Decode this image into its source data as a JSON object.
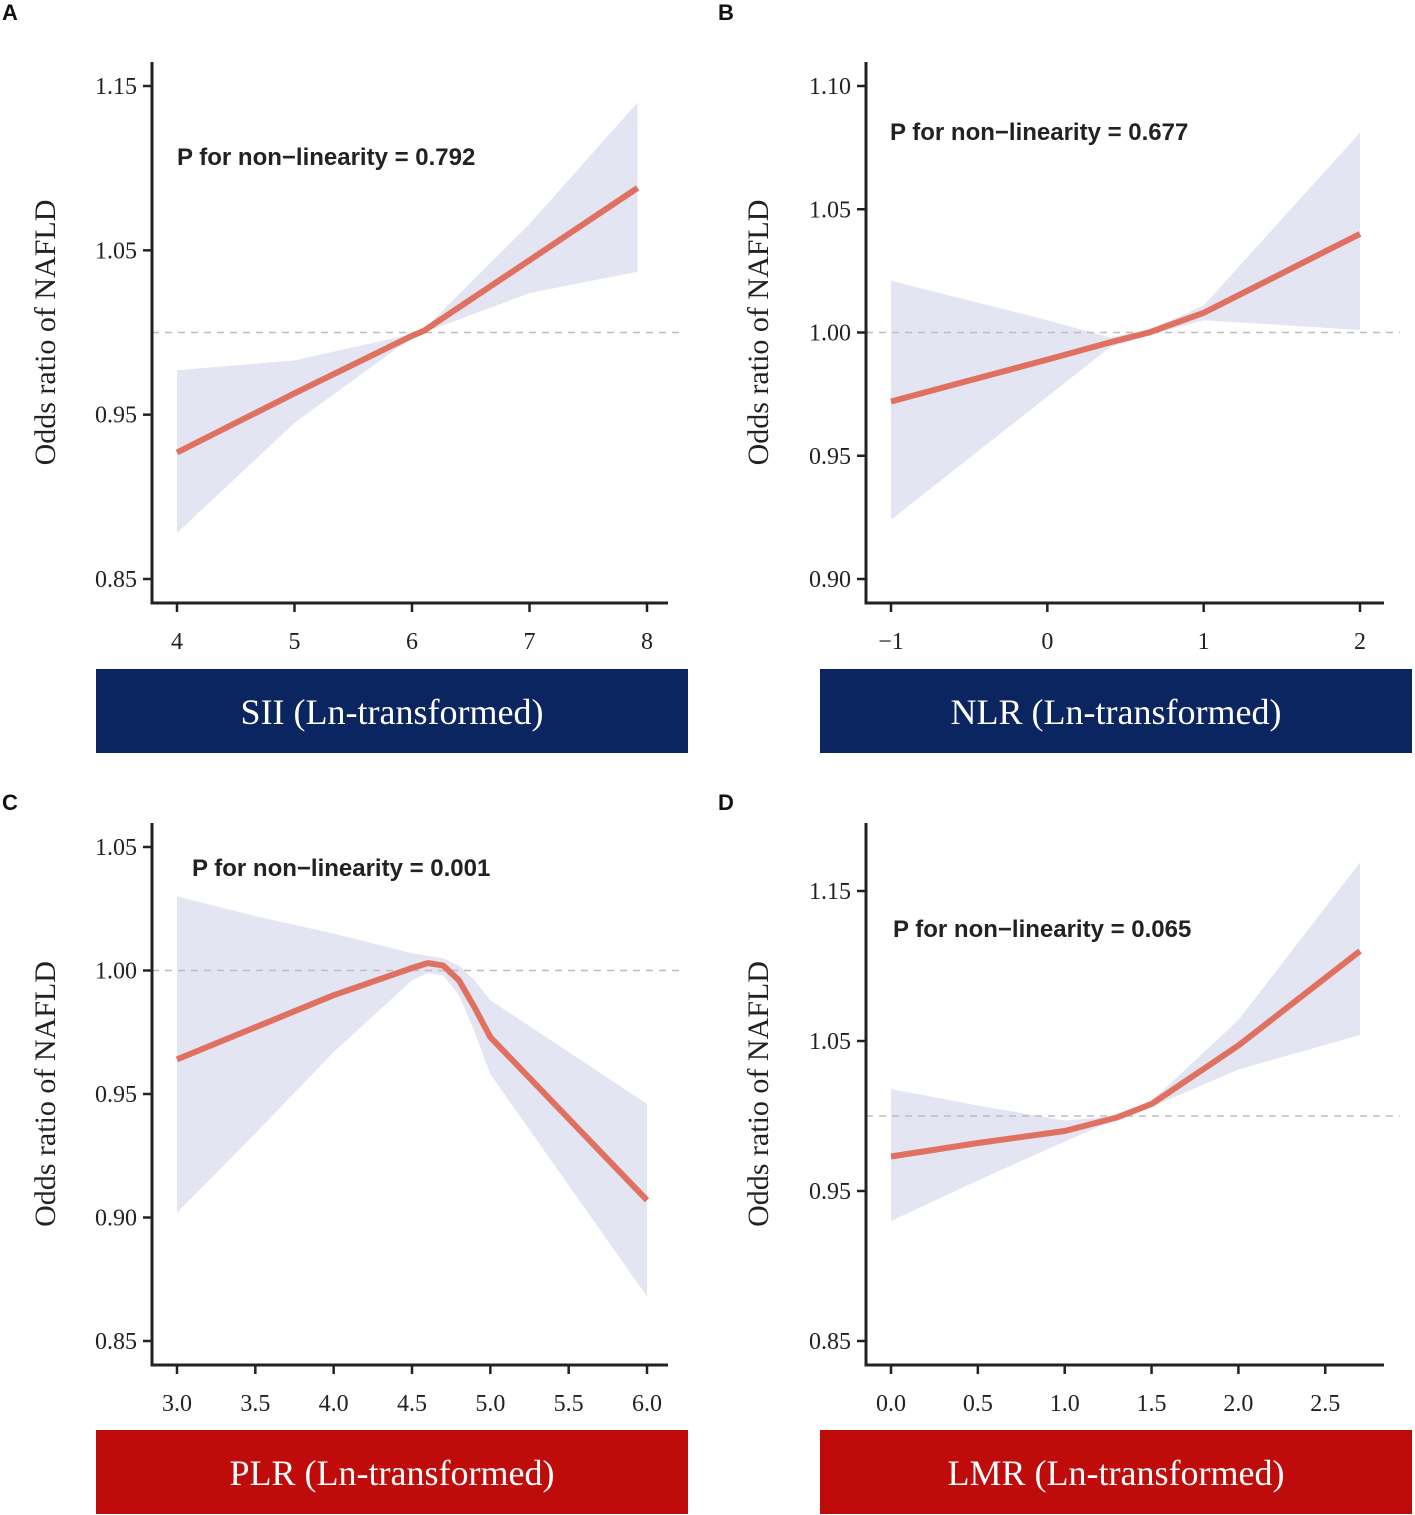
{
  "chart_data": [
    {
      "type": "line",
      "panel": "A",
      "annotation": "P for non−linearity = 0.792",
      "xlabel": "SII (Ln-transformed)",
      "ylabel": "Odds ratio of NAFLD",
      "xlim": [
        4,
        8
      ],
      "ylim": [
        0.85,
        1.15
      ],
      "xticks": [
        4,
        5,
        6,
        7,
        8
      ],
      "xtick_labels": [
        "4",
        "5",
        "6",
        "7",
        "8"
      ],
      "yticks": [
        0.85,
        0.95,
        1.05,
        1.15
      ],
      "ytick_labels": [
        "0.85",
        "0.95",
        "1.05",
        "1.15"
      ],
      "reference_line": 1.0,
      "banner_color": "#0b2561",
      "line_color": "#e07060",
      "band_color": "#e4e5f3",
      "series": [
        {
          "name": "OR",
          "x": [
            4.0,
            5.0,
            6.0,
            6.1,
            7.0,
            7.92
          ],
          "y": [
            0.927,
            0.963,
            0.998,
            1.001,
            1.044,
            1.088
          ],
          "lower": [
            0.878,
            0.945,
            0.997,
            1.0,
            1.024,
            1.037
          ],
          "upper": [
            0.977,
            0.983,
            0.999,
            1.002,
            1.066,
            1.14
          ]
        }
      ]
    },
    {
      "type": "line",
      "panel": "B",
      "annotation": "P for non−linearity = 0.677",
      "xlabel": "NLR (Ln-transformed)",
      "ylabel": "Odds ratio of NAFLD",
      "xlim": [
        -1,
        2
      ],
      "ylim": [
        0.9,
        1.1
      ],
      "xticks": [
        -1,
        0,
        1,
        2
      ],
      "xtick_labels": [
        "−1",
        "0",
        "1",
        "2"
      ],
      "yticks": [
        0.9,
        0.95,
        1.0,
        1.05,
        1.1
      ],
      "ytick_labels": [
        "0.90",
        "0.95",
        "1.00",
        "1.05",
        "1.10"
      ],
      "reference_line": 1.0,
      "banner_color": "#0b2561",
      "line_color": "#e07060",
      "band_color": "#e4e5f3",
      "series": [
        {
          "name": "OR",
          "x": [
            -1.0,
            0.0,
            0.4,
            0.65,
            1.0,
            2.0
          ],
          "y": [
            0.972,
            0.989,
            0.996,
            1.0,
            1.008,
            1.04
          ],
          "lower": [
            0.924,
            0.974,
            0.994,
            0.999,
            1.005,
            1.001
          ],
          "upper": [
            1.021,
            1.005,
            0.998,
            1.001,
            1.011,
            1.081
          ]
        }
      ]
    },
    {
      "type": "line",
      "panel": "C",
      "annotation": "P for non−linearity = 0.001",
      "xlabel": "PLR (Ln-transformed)",
      "ylabel": "Odds ratio of NAFLD",
      "xlim": [
        3.0,
        6.0
      ],
      "ylim": [
        0.85,
        1.05
      ],
      "xticks": [
        3.0,
        3.5,
        4.0,
        4.5,
        5.0,
        5.5,
        6.0
      ],
      "xtick_labels": [
        "3.0",
        "3.5",
        "4.0",
        "4.5",
        "5.0",
        "5.5",
        "6.0"
      ],
      "yticks": [
        0.85,
        0.9,
        0.95,
        1.0,
        1.05
      ],
      "ytick_labels": [
        "0.85",
        "0.90",
        "0.95",
        "1.00",
        "1.05"
      ],
      "reference_line": 1.0,
      "banner_color": "#c00b0b",
      "line_color": "#e07060",
      "band_color": "#e4e5f3",
      "series": [
        {
          "name": "OR",
          "x": [
            3.0,
            3.5,
            4.0,
            4.5,
            4.6,
            4.7,
            4.8,
            4.9,
            5.0,
            5.5,
            6.0
          ],
          "y": [
            0.964,
            0.977,
            0.99,
            1.001,
            1.003,
            1.002,
            0.996,
            0.985,
            0.973,
            0.94,
            0.907
          ],
          "lower": [
            0.902,
            0.934,
            0.967,
            0.996,
            0.999,
            0.998,
            0.99,
            0.975,
            0.958,
            0.913,
            0.868
          ],
          "upper": [
            1.03,
            1.022,
            1.015,
            1.007,
            1.006,
            1.005,
            1.002,
            0.996,
            0.988,
            0.967,
            0.946
          ]
        }
      ]
    },
    {
      "type": "line",
      "panel": "D",
      "annotation": "P for non−linearity = 0.065",
      "xlabel": "LMR (Ln-transformed)",
      "ylabel": "Odds ratio of NAFLD",
      "xlim": [
        0.0,
        2.7
      ],
      "ylim": [
        0.85,
        1.15
      ],
      "xticks": [
        0.0,
        0.5,
        1.0,
        1.5,
        2.0,
        2.5
      ],
      "xtick_labels": [
        "0.0",
        "0.5",
        "1.0",
        "1.5",
        "2.0",
        "2.5"
      ],
      "yticks": [
        0.85,
        0.95,
        1.05,
        1.15
      ],
      "ytick_labels": [
        "0.85",
        "0.95",
        "1.05",
        "1.15"
      ],
      "reference_line": 1.0,
      "banner_color": "#c00b0b",
      "line_color": "#e07060",
      "band_color": "#e4e5f3",
      "series": [
        {
          "name": "OR",
          "x": [
            0.0,
            0.5,
            1.0,
            1.3,
            1.5,
            2.0,
            2.7
          ],
          "y": [
            0.973,
            0.982,
            0.99,
            0.999,
            1.008,
            1.047,
            1.11
          ],
          "lower": [
            0.93,
            0.957,
            0.983,
            0.998,
            1.006,
            1.031,
            1.054
          ],
          "upper": [
            1.018,
            1.007,
            0.997,
            1.0,
            1.01,
            1.064,
            1.169
          ]
        }
      ]
    }
  ]
}
